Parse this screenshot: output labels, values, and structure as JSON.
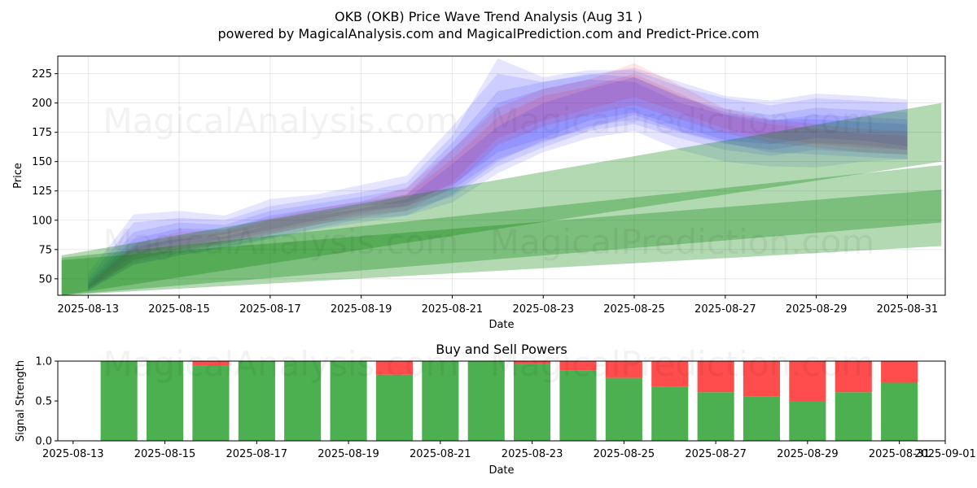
{
  "title": "OKB (OKB) Price Wave Trend Analysis (Aug 31 )",
  "subtitle": "powered by MagicalAnalysis.com and MagicalPrediction.com and Predict-Price.com",
  "watermarks": [
    "MagicalAnalysis.com",
    "MagicalPrediction.com"
  ],
  "colors": {
    "wave_blue": "#0000ff",
    "wave_red": "#ff0000",
    "trend_green": "#008000",
    "buy": "#4caf50",
    "sell": "#ff4c4c",
    "grid": "#b0b0b0"
  },
  "chart_data": [
    {
      "type": "area",
      "title": "",
      "xlabel": "Date",
      "ylabel": "Price",
      "x_ticks": [
        "2025-08-13",
        "2025-08-15",
        "2025-08-17",
        "2025-08-19",
        "2025-08-21",
        "2025-08-23",
        "2025-08-25",
        "2025-08-27",
        "2025-08-29",
        "2025-08-31"
      ],
      "y_ticks": [
        50,
        75,
        100,
        125,
        150,
        175,
        200,
        225
      ],
      "xlim": [
        "2025-08-12T08:00",
        "2025-08-31T20:00"
      ],
      "ylim": [
        36,
        240
      ],
      "grid": true,
      "wave_dates": [
        "2025-08-13",
        "2025-08-14",
        "2025-08-15",
        "2025-08-16",
        "2025-08-17",
        "2025-08-18",
        "2025-08-19",
        "2025-08-20",
        "2025-08-21",
        "2025-08-22",
        "2025-08-23",
        "2025-08-24",
        "2025-08-25",
        "2025-08-26",
        "2025-08-27",
        "2025-08-28",
        "2025-08-29",
        "2025-08-30",
        "2025-08-31"
      ],
      "wave_bands": [
        {
          "color": "blue",
          "upper": [
            55,
            105,
            108,
            104,
            118,
            122,
            130,
            138,
            180,
            225,
            218,
            224,
            230,
            218,
            206,
            202,
            208,
            206,
            203
          ],
          "lower": [
            45,
            74,
            82,
            88,
            96,
            104,
            112,
            115,
            130,
            158,
            170,
            185,
            192,
            180,
            168,
            165,
            170,
            168,
            163
          ]
        },
        {
          "color": "blue",
          "upper": [
            50,
            98,
            102,
            100,
            112,
            118,
            124,
            132,
            172,
            238,
            222,
            228,
            228,
            214,
            204,
            198,
            204,
            202,
            200
          ],
          "lower": [
            42,
            70,
            78,
            84,
            92,
            100,
            108,
            112,
            126,
            152,
            166,
            180,
            186,
            175,
            165,
            160,
            166,
            164,
            160
          ]
        },
        {
          "color": "blue",
          "upper": [
            47,
            90,
            98,
            96,
            108,
            114,
            120,
            127,
            166,
            210,
            218,
            225,
            222,
            205,
            195,
            190,
            196,
            194,
            192
          ],
          "lower": [
            40,
            66,
            74,
            80,
            88,
            96,
            104,
            108,
            120,
            146,
            162,
            176,
            182,
            170,
            160,
            155,
            160,
            158,
            156
          ]
        },
        {
          "color": "blue",
          "upper": [
            46,
            84,
            93,
            92,
            104,
            110,
            116,
            122,
            160,
            200,
            212,
            220,
            218,
            200,
            190,
            185,
            190,
            188,
            186
          ],
          "lower": [
            40,
            62,
            70,
            77,
            85,
            93,
            101,
            104,
            115,
            140,
            158,
            170,
            176,
            160,
            150,
            146,
            145,
            150,
            152
          ]
        },
        {
          "color": "red",
          "upper": [
            45,
            80,
            90,
            92,
            102,
            110,
            116,
            128,
            160,
            196,
            212,
            220,
            234,
            215,
            195,
            186,
            182,
            178,
            176
          ],
          "lower": [
            42,
            66,
            75,
            82,
            90,
            98,
            106,
            112,
            132,
            170,
            185,
            195,
            205,
            192,
            178,
            170,
            165,
            162,
            160
          ]
        },
        {
          "color": "red",
          "upper": [
            44,
            76,
            86,
            90,
            100,
            106,
            112,
            122,
            152,
            188,
            206,
            214,
            225,
            208,
            190,
            182,
            178,
            174,
            172
          ],
          "lower": [
            42,
            64,
            72,
            80,
            88,
            96,
            102,
            108,
            128,
            164,
            180,
            190,
            198,
            186,
            174,
            166,
            162,
            158,
            156
          ]
        },
        {
          "color": "blue",
          "upper": [
            44,
            78,
            84,
            86,
            96,
            104,
            110,
            118,
            148,
            180,
            200,
            212,
            222,
            206,
            192,
            186,
            186,
            184,
            182
          ],
          "lower": [
            40,
            62,
            70,
            76,
            84,
            92,
            98,
            104,
            122,
            150,
            168,
            178,
            190,
            176,
            166,
            158,
            156,
            154,
            152
          ]
        }
      ],
      "trend_bands": [
        {
          "start_date": "2025-08-12T10:00",
          "end_date": "2025-08-31T18:00",
          "start_upper": 70,
          "start_lower": 36,
          "end_upper": 200,
          "end_lower": 150
        },
        {
          "start_date": "2025-08-12T10:00",
          "end_date": "2025-08-31T18:00",
          "start_upper": 68,
          "start_lower": 36,
          "end_upper": 147,
          "end_lower": 78
        },
        {
          "start_date": "2025-08-12T10:00",
          "end_date": "2025-08-31T18:00",
          "start_upper": 66,
          "start_lower": 36,
          "end_upper": 126,
          "end_lower": 98
        }
      ]
    },
    {
      "type": "bar",
      "title": "Buy and Sell Powers",
      "xlabel": "Date",
      "ylabel": "Signal Strength",
      "x_ticks": [
        "2025-08-13",
        "2025-08-15",
        "2025-08-17",
        "2025-08-19",
        "2025-08-21",
        "2025-08-23",
        "2025-08-25",
        "2025-08-27",
        "2025-08-29",
        "2025-08-31",
        "2025-09-01"
      ],
      "y_ticks": [
        "0.0",
        "0.5",
        "1.0"
      ],
      "xlim": [
        "2025-08-12T16:00",
        "2025-09-01T00:00"
      ],
      "ylim": [
        0,
        1
      ],
      "categories": [
        "2025-08-14",
        "2025-08-15",
        "2025-08-16",
        "2025-08-17",
        "2025-08-18",
        "2025-08-19",
        "2025-08-20",
        "2025-08-21",
        "2025-08-22",
        "2025-08-23",
        "2025-08-24",
        "2025-08-25",
        "2025-08-26",
        "2025-08-27",
        "2025-08-28",
        "2025-08-29",
        "2025-08-30",
        "2025-08-31"
      ],
      "series": [
        {
          "name": "Buy",
          "values": [
            1.0,
            1.0,
            0.94,
            1.0,
            1.0,
            1.0,
            0.83,
            1.0,
            1.0,
            0.96,
            0.88,
            0.79,
            0.68,
            0.61,
            0.56,
            0.5,
            0.61,
            0.73
          ]
        },
        {
          "name": "Sell",
          "values": [
            0.0,
            0.0,
            0.06,
            0.0,
            0.0,
            0.0,
            0.17,
            0.0,
            0.0,
            0.04,
            0.12,
            0.21,
            0.32,
            0.39,
            0.44,
            0.5,
            0.39,
            0.27
          ]
        }
      ]
    }
  ]
}
